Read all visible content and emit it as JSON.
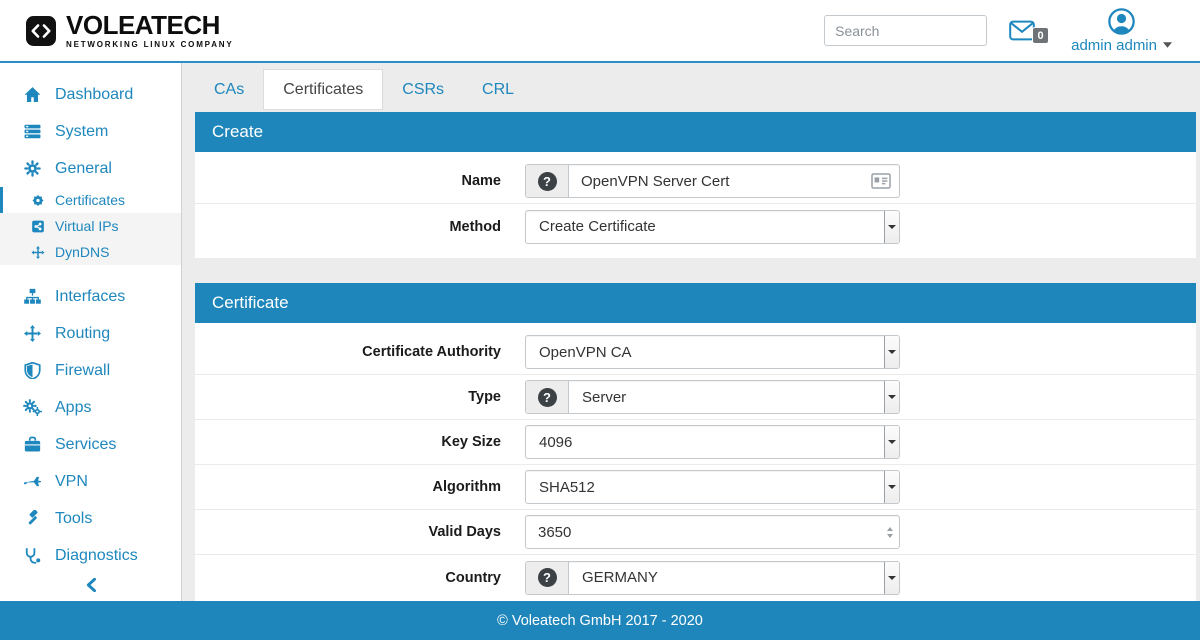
{
  "brand": {
    "name": "VOLEATECH",
    "tagline": "NETWORKING LINUX COMPANY",
    "logo_icon": "code-icon"
  },
  "header": {
    "search_placeholder": "Search",
    "messages_count": "0",
    "user_name": "admin admin"
  },
  "colors": {
    "primary_blue": "#1e86ba",
    "content_background": "#ececec",
    "badge_gray": "#6f7377",
    "help_circle": "#3c4146"
  },
  "sidebar": {
    "items": [
      {
        "label": "Dashboard",
        "icon": "home-icon"
      },
      {
        "label": "System",
        "icon": "server-icon"
      },
      {
        "label": "General",
        "icon": "gear-icon"
      },
      {
        "label": "Certificates",
        "icon": "certificate-icon",
        "sub": true,
        "active": true
      },
      {
        "label": "Virtual IPs",
        "icon": "share-square-icon",
        "sub": true
      },
      {
        "label": "DynDNS",
        "icon": "move-arrows-icon",
        "sub": true
      },
      {
        "label": "Interfaces",
        "icon": "sitemap-icon",
        "gap_before": true
      },
      {
        "label": "Routing",
        "icon": "move-arrows-icon"
      },
      {
        "label": "Firewall",
        "icon": "shield-icon"
      },
      {
        "label": "Apps",
        "icon": "gears-icon"
      },
      {
        "label": "Services",
        "icon": "briefcase-icon"
      },
      {
        "label": "VPN",
        "icon": "jet-icon"
      },
      {
        "label": "Tools",
        "icon": "gavel-icon"
      },
      {
        "label": "Diagnostics",
        "icon": "stethoscope-icon"
      }
    ],
    "collapse_icon": "chevron-left-icon"
  },
  "tabs": [
    {
      "label": "CAs",
      "active": false
    },
    {
      "label": "Certificates",
      "active": true
    },
    {
      "label": "CSRs",
      "active": false
    },
    {
      "label": "CRL",
      "active": false
    }
  ],
  "icons": {
    "help_glyph": "?"
  },
  "panels": [
    {
      "title": "Create",
      "fields": [
        {
          "label": "Name",
          "type": "text",
          "value": "OpenVPN Server Cert",
          "help": true,
          "trailing_icon": "contact-card-icon"
        },
        {
          "label": "Method",
          "type": "select",
          "value": "Create Certificate",
          "help": false
        }
      ]
    },
    {
      "title": "Certificate",
      "fields": [
        {
          "label": "Certificate Authority",
          "type": "select",
          "value": "OpenVPN CA",
          "help": false
        },
        {
          "label": "Type",
          "type": "select",
          "value": "Server",
          "help": true
        },
        {
          "label": "Key Size",
          "type": "select",
          "value": "4096",
          "help": false
        },
        {
          "label": "Algorithm",
          "type": "select",
          "value": "SHA512",
          "help": false
        },
        {
          "label": "Valid Days",
          "type": "number",
          "value": "3650",
          "help": false
        },
        {
          "label": "Country",
          "type": "select",
          "value": "GERMANY",
          "help": true
        }
      ]
    }
  ],
  "footer": {
    "copyright": "© Voleatech GmbH 2017 - 2020"
  }
}
